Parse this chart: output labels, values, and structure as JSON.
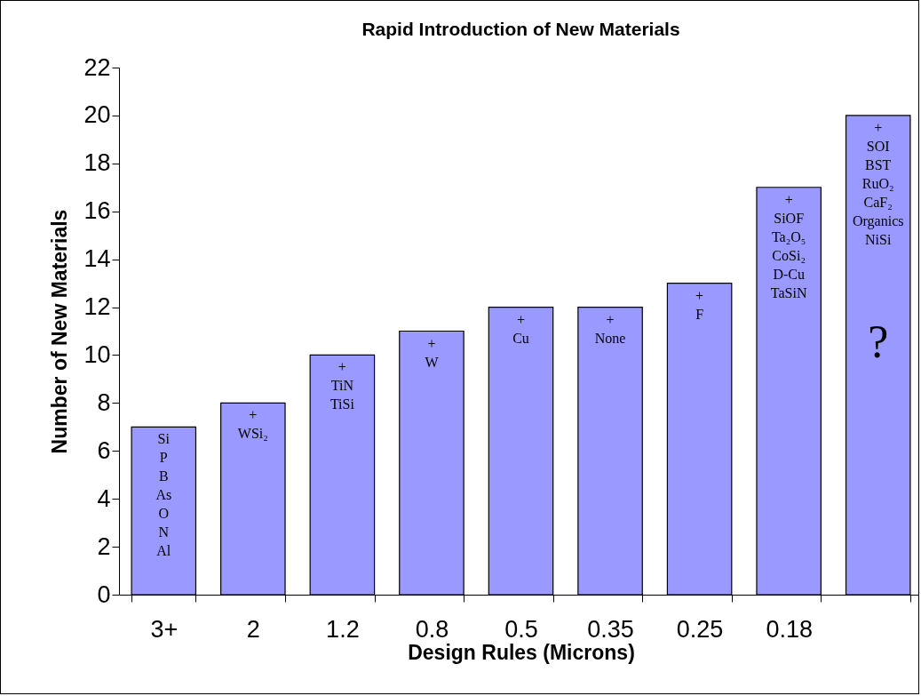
{
  "chart_data": {
    "type": "bar",
    "title": "Rapid Introduction of New Materials",
    "xlabel": "Design Rules (Microns)",
    "ylabel": "Number of New Materials",
    "categories": [
      "3+",
      "2",
      "1.2",
      "0.8",
      "0.5",
      "0.35",
      "0.25",
      "0.18",
      null
    ],
    "values": [
      7,
      8,
      10,
      11,
      12,
      12,
      13,
      17,
      20
    ],
    "color": "#9999ff",
    "ylim": [
      0,
      22
    ],
    "yticks": [
      0,
      2,
      4,
      6,
      8,
      10,
      12,
      14,
      16,
      18,
      20,
      22
    ],
    "grid": false,
    "annotations": [
      {
        "text": "Si\nP\nB\nAs\nO\nN\nAl",
        "x": "3+",
        "y": 7
      },
      {
        "text": "+\nWSi₂",
        "x": "2",
        "y": 8
      },
      {
        "text": "+\nTiN\nTiSi",
        "x": "1.2",
        "y": 10
      },
      {
        "text": "+\nW",
        "x": "0.8",
        "y": 11
      },
      {
        "text": "+\nCu",
        "x": "0.5",
        "y": 12
      },
      {
        "text": "+\nNone",
        "x": "0.35",
        "y": 12
      },
      {
        "text": "+\nF",
        "x": "0.25",
        "y": 13
      },
      {
        "text": "+\nSiOF\nTa₂O₅\nCoSi₂\nD-Cu\nTaSiN",
        "x": "0.18",
        "y": 17
      },
      {
        "text": "+\nSOI\nBST\nRuO₂\nCaF₂\nOrganics\nNiSi",
        "y": 20
      },
      "?"
    ]
  }
}
